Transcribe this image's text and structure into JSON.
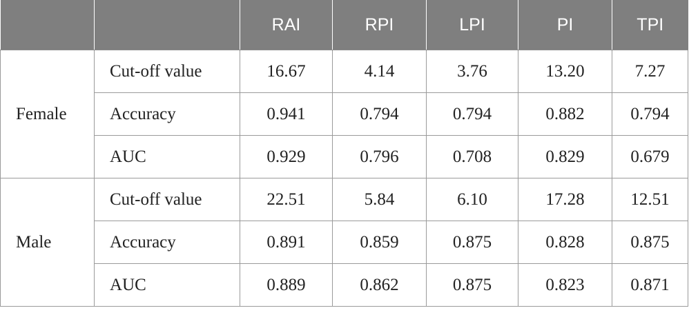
{
  "header": {
    "columns": [
      "",
      "",
      "RAI",
      "RPI",
      "LPI",
      "PI",
      "TPI"
    ]
  },
  "groups": [
    {
      "label": "Female",
      "rows": [
        {
          "metric": "Cut-off value",
          "values": [
            "16.67",
            "4.14",
            "3.76",
            "13.20",
            "7.27"
          ]
        },
        {
          "metric": "Accuracy",
          "values": [
            "0.941",
            "0.794",
            "0.794",
            "0.882",
            "0.794"
          ]
        },
        {
          "metric": "AUC",
          "values": [
            "0.929",
            "0.796",
            "0.708",
            "0.829",
            "0.679"
          ]
        }
      ]
    },
    {
      "label": "Male",
      "rows": [
        {
          "metric": "Cut-off value",
          "values": [
            "22.51",
            "5.84",
            "6.10",
            "17.28",
            "12.51"
          ]
        },
        {
          "metric": "Accuracy",
          "values": [
            "0.891",
            "0.859",
            "0.875",
            "0.828",
            "0.875"
          ]
        },
        {
          "metric": "AUC",
          "values": [
            "0.889",
            "0.862",
            "0.875",
            "0.823",
            "0.871"
          ]
        }
      ]
    }
  ]
}
